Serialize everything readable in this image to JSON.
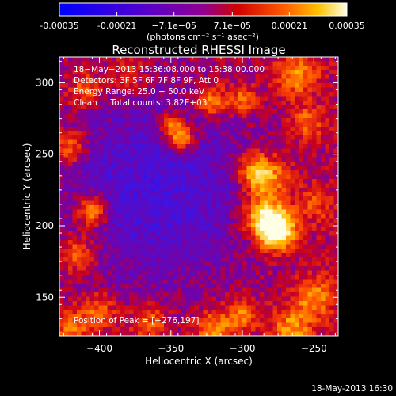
{
  "chart_data": {
    "type": "heatmap",
    "title": "Reconstructed RHESSI Image",
    "colorbar": {
      "ticks": [
        "-0.00035",
        "-0.00021",
        "−7.1e−05",
        "7.1e−05",
        "0.00021",
        "0.00035"
      ],
      "tick_values": [
        -0.00035,
        -0.00021,
        -7.1e-05,
        7.1e-05,
        0.00021,
        0.00035
      ],
      "range": [
        -0.00035,
        0.00035
      ],
      "unit_label": "(photons cm⁻² s⁻¹ asec⁻²)",
      "colormap": [
        "#0000ff",
        "#5a00c8",
        "#8a00a0",
        "#c80000",
        "#ff5000",
        "#ffc000",
        "#ffffe0"
      ]
    },
    "xlabel": "Heliocentric X (arcsec)",
    "ylabel": "Heliocentric Y (arcsec)",
    "xlim": [
      -428,
      -233
    ],
    "ylim": [
      123,
      318
    ],
    "xticks": [
      -400,
      -350,
      -300,
      -250
    ],
    "yticks": [
      150,
      200,
      250,
      300
    ],
    "annotations": [
      "18−May−2013 15:36:08.000 to 15:38:00.000",
      "Detectors: 3F 5F 6F 7F 8F 9F, Att 0",
      "Energy Range: 25.0 − 50.0 keV",
      "Clean     Total counts: 3.82E+03"
    ],
    "peak_label": "Position of Peak = [−276,197]",
    "peak_position": [
      -276,
      197
    ]
  },
  "footer": {
    "timestamp": "18-May-2013 16:30"
  }
}
